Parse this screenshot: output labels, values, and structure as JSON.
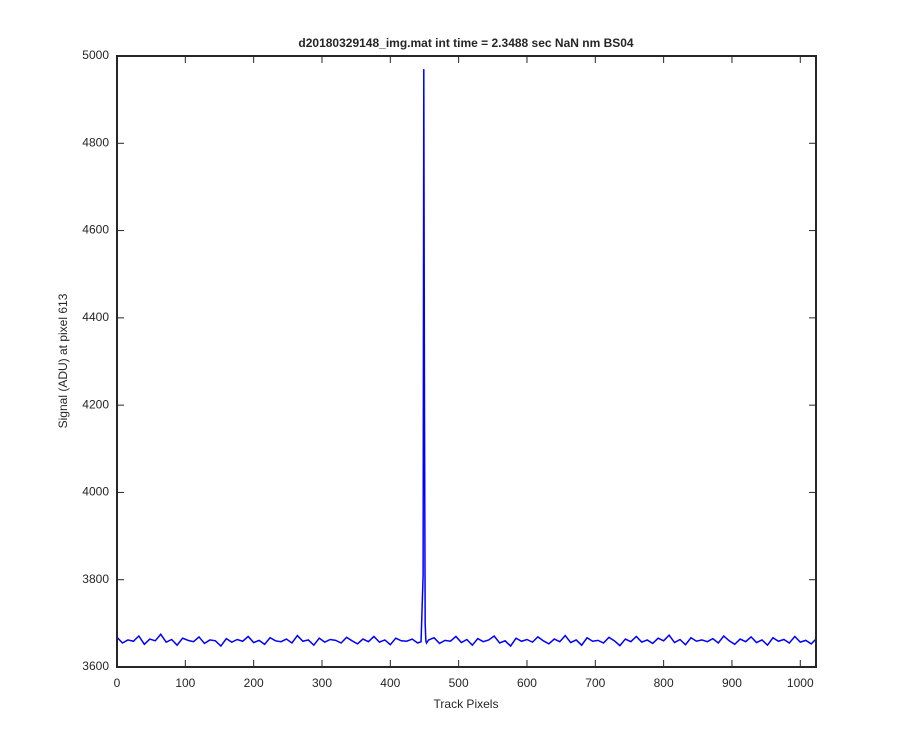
{
  "chart_data": {
    "type": "line",
    "title": "d20180329148_img.mat int time = 2.3488 sec  NaN nm BS04",
    "x_label": "Track Pixels",
    "y_label": "Signal (ADU) at pixel 613",
    "x": [
      0,
      8,
      16,
      24,
      32,
      40,
      48,
      56,
      64,
      72,
      80,
      88,
      96,
      104,
      112,
      120,
      128,
      136,
      144,
      152,
      160,
      168,
      176,
      184,
      192,
      200,
      208,
      216,
      224,
      232,
      240,
      248,
      256,
      264,
      272,
      280,
      288,
      296,
      304,
      312,
      320,
      328,
      336,
      344,
      352,
      360,
      368,
      376,
      384,
      392,
      400,
      408,
      416,
      424,
      432,
      440,
      445,
      448,
      449,
      450,
      451,
      452,
      453,
      456,
      464,
      472,
      480,
      488,
      496,
      504,
      512,
      520,
      528,
      536,
      544,
      552,
      560,
      568,
      576,
      584,
      592,
      600,
      608,
      616,
      624,
      632,
      640,
      648,
      656,
      664,
      672,
      680,
      688,
      696,
      704,
      712,
      720,
      728,
      736,
      744,
      752,
      760,
      768,
      776,
      784,
      792,
      800,
      808,
      816,
      824,
      832,
      840,
      848,
      856,
      864,
      872,
      880,
      888,
      896,
      904,
      912,
      920,
      928,
      936,
      944,
      952,
      960,
      968,
      976,
      984,
      992,
      1000,
      1008,
      1016,
      1023
    ],
    "series": [
      {
        "color": "#0000ff",
        "values": [
          3668,
          3655,
          3662,
          3659,
          3671,
          3652,
          3664,
          3660,
          3675,
          3657,
          3663,
          3650,
          3666,
          3661,
          3658,
          3669,
          3654,
          3662,
          3660,
          3648,
          3665,
          3657,
          3663,
          3659,
          3670,
          3656,
          3661,
          3652,
          3667,
          3660,
          3658,
          3664,
          3655,
          3672,
          3659,
          3662,
          3650,
          3666,
          3657,
          3663,
          3661,
          3655,
          3668,
          3660,
          3653,
          3664,
          3658,
          3670,
          3657,
          3662,
          3651,
          3666,
          3660,
          3659,
          3664,
          3655,
          3658,
          3810,
          4970,
          4200,
          3700,
          3660,
          3655,
          3662,
          3667,
          3654,
          3661,
          3659,
          3670,
          3656,
          3663,
          3650,
          3665,
          3658,
          3662,
          3671,
          3655,
          3660,
          3648,
          3666,
          3659,
          3663,
          3657,
          3669,
          3660,
          3653,
          3664,
          3658,
          3672,
          3656,
          3662,
          3650,
          3667,
          3659,
          3661,
          3655,
          3668,
          3660,
          3649,
          3664,
          3658,
          3670,
          3657,
          3662,
          3654,
          3666,
          3660,
          3673,
          3656,
          3663,
          3651,
          3667,
          3659,
          3662,
          3658,
          3665,
          3655,
          3671,
          3660,
          3652,
          3664,
          3658,
          3669,
          3656,
          3662,
          3650,
          3667,
          3659,
          3663,
          3655,
          3670,
          3657,
          3661,
          3653,
          3664
        ]
      }
    ],
    "xlim": [
      0,
      1023
    ],
    "ylim": [
      3600,
      5000
    ],
    "xticks": [
      0,
      100,
      200,
      300,
      400,
      500,
      600,
      700,
      800,
      900,
      1000
    ],
    "yticks": [
      3600,
      3800,
      4000,
      4200,
      4400,
      4600,
      4800,
      5000
    ]
  }
}
